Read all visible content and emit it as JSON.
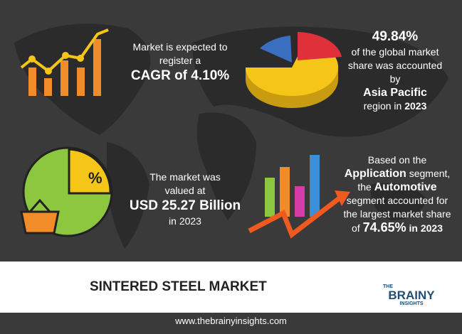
{
  "stats": {
    "cagr": {
      "text": "Market is expected to register a",
      "value": "CAGR of 4.10%"
    },
    "region": {
      "value": "49.84%",
      "text": "of the global market share was accounted by",
      "region": "Asia Pacific",
      "year_prefix": "region in",
      "year": "2023"
    },
    "size": {
      "text": "The market was valued at",
      "value": "USD 25.27 Billion",
      "year": "in 2023"
    },
    "segment": {
      "prefix": "Based on the",
      "segment": "Application",
      "mid": "segment, the",
      "leader": "Automotive",
      "text": "segment accounted for the largest market share of",
      "value": "74.65%",
      "year": "in 2023"
    }
  },
  "title": "SINTERED STEEL MARKET",
  "logo": {
    "line1": "THE",
    "line2": "BRAINY",
    "line3": "INSIGHTS"
  },
  "footer": "www.thebrainyinsights.com"
}
